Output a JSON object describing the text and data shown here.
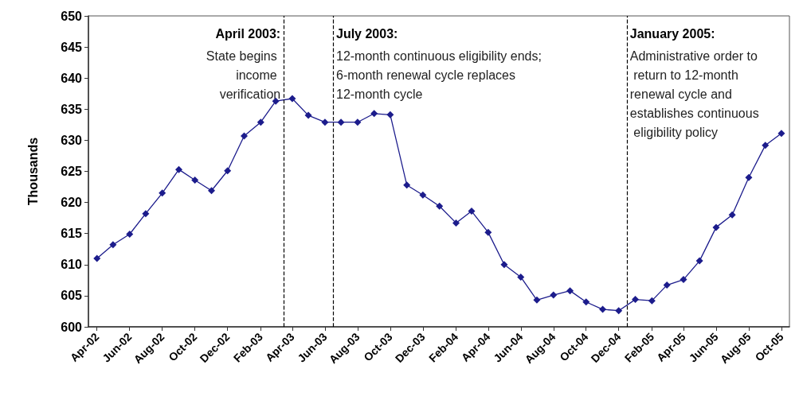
{
  "chart_data": {
    "type": "line",
    "ylabel": "Thousands",
    "x": [
      "2002-04",
      "2002-05",
      "2002-06",
      "2002-07",
      "2002-08",
      "2002-09",
      "2002-10",
      "2002-11",
      "2002-12",
      "2003-01",
      "2003-02",
      "2003-03",
      "2003-04",
      "2003-05",
      "2003-06",
      "2003-07",
      "2003-08",
      "2003-09",
      "2003-10",
      "2003-11",
      "2003-12",
      "2004-01",
      "2004-02",
      "2004-03",
      "2004-04",
      "2004-05",
      "2004-06",
      "2004-07",
      "2004-08",
      "2004-09",
      "2004-10",
      "2004-11",
      "2004-12",
      "2005-01",
      "2005-02",
      "2005-03",
      "2005-04",
      "2005-05",
      "2005-06",
      "2005-07",
      "2005-08",
      "2005-09",
      "2005-10"
    ],
    "values": [
      611.0,
      613.2,
      614.9,
      618.2,
      621.5,
      625.3,
      623.6,
      621.9,
      625.1,
      630.7,
      632.9,
      636.3,
      636.7,
      634.0,
      632.9,
      632.9,
      632.9,
      634.3,
      634.1,
      622.8,
      621.2,
      619.4,
      616.7,
      618.6,
      615.2,
      610.0,
      608.0,
      604.3,
      605.1,
      605.8,
      604.0,
      602.8,
      602.6,
      604.4,
      604.2,
      606.7,
      607.6,
      610.6,
      616.0,
      618.0,
      624.0,
      629.2,
      631.1
    ],
    "color": "#1c1c8c",
    "marker": "diamond",
    "xlim": [
      "2002-03-16",
      "2005-10-16"
    ],
    "xticks": [
      {
        "value": "2002-04",
        "label": "Apr-02"
      },
      {
        "value": "2002-06",
        "label": "Jun-02"
      },
      {
        "value": "2002-08",
        "label": "Aug-02"
      },
      {
        "value": "2002-10",
        "label": "Oct-02"
      },
      {
        "value": "2002-12",
        "label": "Dec-02"
      },
      {
        "value": "2003-02",
        "label": "Feb-03"
      },
      {
        "value": "2003-04",
        "label": "Apr-03"
      },
      {
        "value": "2003-06",
        "label": "Jun-03"
      },
      {
        "value": "2003-08",
        "label": "Aug-03"
      },
      {
        "value": "2003-10",
        "label": "Oct-03"
      },
      {
        "value": "2003-12",
        "label": "Dec-03"
      },
      {
        "value": "2004-02",
        "label": "Feb-04"
      },
      {
        "value": "2004-04",
        "label": "Apr-04"
      },
      {
        "value": "2004-06",
        "label": "Jun-04"
      },
      {
        "value": "2004-08",
        "label": "Aug-04"
      },
      {
        "value": "2004-10",
        "label": "Oct-04"
      },
      {
        "value": "2004-12",
        "label": "Dec-04"
      },
      {
        "value": "2005-02",
        "label": "Feb-05"
      },
      {
        "value": "2005-04",
        "label": "Apr-05"
      },
      {
        "value": "2005-06",
        "label": "Jun-05"
      },
      {
        "value": "2005-08",
        "label": "Aug-05"
      },
      {
        "value": "2005-10",
        "label": "Oct-05"
      }
    ],
    "ylim": [
      600,
      650
    ],
    "yticks": [
      600,
      605,
      610,
      615,
      620,
      625,
      630,
      635,
      640,
      645,
      650
    ],
    "ref_lines": [
      {
        "axis": "x",
        "value": "2003-03-16",
        "label": "April 2003:",
        "line_style": "dashed",
        "color": "#000000"
      },
      {
        "axis": "x",
        "value": "2003-06-16",
        "label": "July 2003:",
        "line_style": "dashed",
        "color": "#000000"
      },
      {
        "axis": "x",
        "value": "2004-12-16",
        "label": "January 2005:",
        "line_style": "dashed",
        "color": "#000000"
      }
    ],
    "annotations": [
      "State begins income verification",
      "12-month continuous eligibility ends; 6-month renewal cycle replaces 12-month cycle",
      "Administrative order to return to 12-month renewal cycle and establishes continuous eligibility policy"
    ]
  }
}
